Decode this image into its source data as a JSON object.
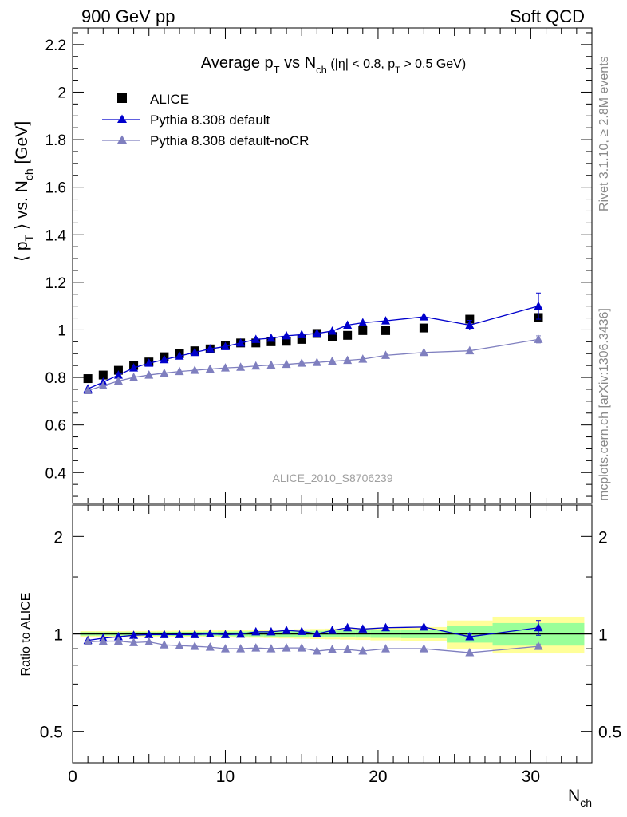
{
  "header": {
    "left": "900 GeV pp",
    "right": "Soft QCD"
  },
  "side_text": {
    "rivet": "Rivet 3.1.10, ≥ 2.8M events",
    "mcplots": "mcplots.cern.ch [arXiv:1306.3436]"
  },
  "watermark": "ALICE_2010_S8706239",
  "chart_data": [
    {
      "type": "scatter",
      "title": "Average p_T vs N_ch (|η| < 0.8, p_T > 0.5 GeV)",
      "title_parts": {
        "main": "Average p",
        "sub1": "T",
        "mid": " vs N",
        "sub2": "ch",
        "cut": " (|η| < 0.8, p",
        "sub3": "T",
        "tail": " > 0.5 GeV)"
      },
      "ylabel": "⟨ p_T ⟩ vs. N_ch [GeV]",
      "ylabel_parts": {
        "pre": "⟨ p",
        "sub1": "T",
        "mid": " ⟩ vs. N",
        "sub2": "ch",
        "post": " [GeV]"
      },
      "xlim": [
        0,
        34
      ],
      "ylim": [
        0.27,
        2.27
      ],
      "y_ticks": [
        "0.4",
        "0.6",
        "0.8",
        "1",
        "1.2",
        "1.4",
        "1.6",
        "1.8",
        "2",
        "2.2"
      ],
      "y_tick_values": [
        0.4,
        0.6,
        0.8,
        1.0,
        1.2,
        1.4,
        1.6,
        1.8,
        2.0,
        2.2
      ],
      "legend_position": "top-left",
      "series": [
        {
          "name": "ALICE",
          "color": "#000000",
          "marker": "square",
          "line": false,
          "x": [
            1,
            2,
            3,
            4,
            5,
            6,
            7,
            8,
            9,
            10,
            11,
            12,
            13,
            14,
            15,
            16,
            17,
            18,
            19,
            20.5,
            23,
            26,
            30.5
          ],
          "y": [
            0.795,
            0.81,
            0.83,
            0.85,
            0.865,
            0.887,
            0.9,
            0.912,
            0.92,
            0.935,
            0.945,
            0.945,
            0.95,
            0.952,
            0.96,
            0.985,
            0.972,
            0.977,
            0.997,
            0.997,
            1.008,
            1.045,
            1.052
          ]
        },
        {
          "name": "Pythia 8.308 default",
          "color": "#0000cc",
          "marker": "triangle",
          "line": true,
          "x": [
            1,
            2,
            3,
            4,
            5,
            6,
            7,
            8,
            9,
            10,
            11,
            12,
            13,
            14,
            15,
            16,
            17,
            18,
            19,
            20.5,
            23,
            26,
            30.5
          ],
          "y": [
            0.752,
            0.78,
            0.81,
            0.84,
            0.86,
            0.875,
            0.89,
            0.905,
            0.92,
            0.93,
            0.945,
            0.96,
            0.965,
            0.975,
            0.98,
            0.985,
            0.995,
            1.02,
            1.03,
            1.038,
            1.055,
            1.02,
            1.1
          ],
          "err": [
            0,
            0,
            0,
            0,
            0,
            0,
            0,
            0,
            0,
            0,
            0,
            0,
            0,
            0,
            0,
            0,
            0,
            0,
            0,
            0,
            0,
            0.02,
            0.055
          ]
        },
        {
          "name": "Pythia 8.308 default-noCR",
          "color": "#7f7fbf",
          "marker": "triangle",
          "line": true,
          "x": [
            1,
            2,
            3,
            4,
            5,
            6,
            7,
            8,
            9,
            10,
            11,
            12,
            13,
            14,
            15,
            16,
            17,
            18,
            19,
            20.5,
            23,
            26,
            30.5
          ],
          "y": [
            0.745,
            0.765,
            0.785,
            0.8,
            0.81,
            0.818,
            0.825,
            0.83,
            0.835,
            0.84,
            0.843,
            0.848,
            0.852,
            0.855,
            0.86,
            0.863,
            0.868,
            0.872,
            0.877,
            0.893,
            0.905,
            0.912,
            0.96
          ],
          "err": [
            0,
            0,
            0,
            0,
            0,
            0,
            0,
            0,
            0,
            0,
            0,
            0,
            0,
            0,
            0,
            0,
            0,
            0,
            0,
            0,
            0,
            0,
            0.015
          ]
        }
      ]
    },
    {
      "type": "scatter",
      "ylabel": "Ratio to ALICE",
      "xlabel": "N_ch",
      "xlabel_parts": {
        "main": "N",
        "sub": "ch"
      },
      "xlim": [
        0,
        34
      ],
      "ylim": [
        0.4,
        2.5
      ],
      "y_scale": "log",
      "y_ticks": [
        "0.5",
        "1",
        "2"
      ],
      "y_tick_values": [
        0.5,
        1,
        2
      ],
      "x_ticks": [
        "0",
        "10",
        "20",
        "30"
      ],
      "x_tick_values": [
        0,
        10,
        20,
        30
      ],
      "reference_bands": {
        "x_edges": [
          0.5,
          1.5,
          2.5,
          3.5,
          4.5,
          5.5,
          6.5,
          7.5,
          8.5,
          9.5,
          10.5,
          11.5,
          12.5,
          13.5,
          14.5,
          15.5,
          16.5,
          17.5,
          18.5,
          19.5,
          21.5,
          24.5,
          27.5,
          33.5
        ],
        "inner_halfwidth": [
          0.012,
          0.012,
          0.012,
          0.013,
          0.013,
          0.013,
          0.014,
          0.014,
          0.015,
          0.016,
          0.017,
          0.018,
          0.019,
          0.02,
          0.021,
          0.022,
          0.024,
          0.025,
          0.026,
          0.028,
          0.03,
          0.06,
          0.08
        ],
        "outer_halfwidth": [
          0.02,
          0.02,
          0.02,
          0.021,
          0.021,
          0.022,
          0.023,
          0.024,
          0.025,
          0.026,
          0.027,
          0.028,
          0.03,
          0.032,
          0.034,
          0.036,
          0.038,
          0.04,
          0.042,
          0.045,
          0.05,
          0.1,
          0.13
        ],
        "inner_color": "#99ff99",
        "outer_color": "#ffff99"
      },
      "series": [
        {
          "name": "Pythia 8.308 default",
          "color": "#0000cc",
          "marker": "triangle",
          "line": true,
          "x": [
            1,
            2,
            3,
            4,
            5,
            6,
            7,
            8,
            9,
            10,
            11,
            12,
            13,
            14,
            15,
            16,
            17,
            18,
            19,
            20.5,
            23,
            26,
            30.5
          ],
          "y": [
            0.955,
            0.97,
            0.98,
            0.99,
            0.995,
            0.995,
            0.995,
            0.995,
            1.0,
            0.995,
            0.998,
            1.015,
            1.015,
            1.025,
            1.018,
            1.0,
            1.025,
            1.045,
            1.035,
            1.045,
            1.05,
            0.98,
            1.045
          ],
          "err": [
            0,
            0,
            0,
            0,
            0,
            0,
            0,
            0,
            0,
            0,
            0,
            0,
            0,
            0,
            0,
            0,
            0,
            0,
            0,
            0,
            0,
            0.02,
            0.055
          ]
        },
        {
          "name": "Pythia 8.308 default-noCR",
          "color": "#7f7fbf",
          "marker": "triangle",
          "line": true,
          "x": [
            1,
            2,
            3,
            4,
            5,
            6,
            7,
            8,
            9,
            10,
            11,
            12,
            13,
            14,
            15,
            16,
            17,
            18,
            19,
            20.5,
            23,
            26,
            30.5
          ],
          "y": [
            0.945,
            0.95,
            0.95,
            0.94,
            0.945,
            0.925,
            0.92,
            0.915,
            0.91,
            0.9,
            0.9,
            0.905,
            0.9,
            0.905,
            0.905,
            0.885,
            0.895,
            0.895,
            0.885,
            0.9,
            0.9,
            0.875,
            0.915
          ],
          "err": [
            0,
            0,
            0,
            0,
            0,
            0,
            0,
            0,
            0,
            0,
            0,
            0,
            0,
            0,
            0,
            0,
            0,
            0,
            0,
            0,
            0,
            0,
            0.015
          ]
        }
      ]
    }
  ]
}
